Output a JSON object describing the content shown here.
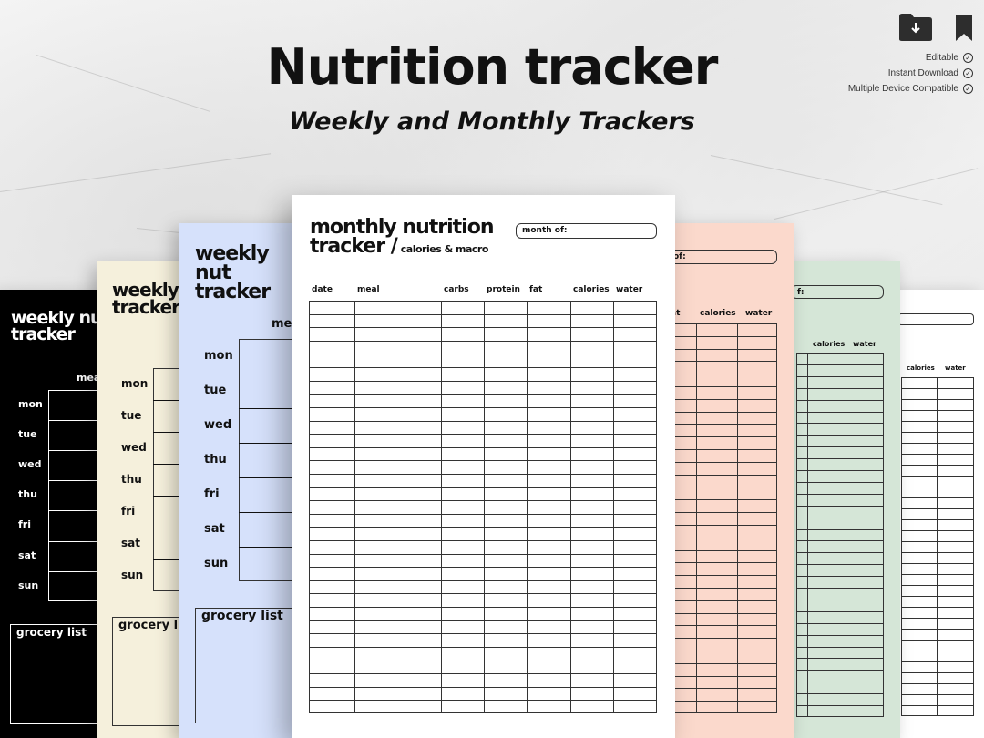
{
  "header": {
    "title": "Nutrition tracker",
    "subtitle": "Weekly and Monthly Trackers"
  },
  "features": [
    "Editable",
    "Instant Download",
    "Multiple Device Compatible"
  ],
  "icons": {
    "download": "folder-download-icon",
    "bookmark": "bookmark-icon",
    "check": "check-circle-icon"
  },
  "colors": {
    "black_sheet": "#000000",
    "cream_sheet": "#f5f0dc",
    "blue_sheet": "#d6e1fb",
    "white_sheet": "#ffffff",
    "peach_sheet": "#fbd9cc",
    "green_sheet": "#d5e6d7"
  },
  "weekly": {
    "title_line1": "weekly nut",
    "title_line1_cream": "weekly n",
    "title_line2": "tracker",
    "meal_label": "mea",
    "meal_label_blue": "me",
    "days": [
      "mon",
      "tue",
      "wed",
      "thu",
      "fri",
      "sat",
      "sun"
    ],
    "grocery": "grocery list",
    "grocery_cut": "grocery lis"
  },
  "monthly": {
    "title_line1": "monthly nutrition",
    "title_line2": "tracker /",
    "title_sub": "calories & macro",
    "month_of": "month of:",
    "month_of_cut": "of:",
    "month_of_short": "f:",
    "columns": [
      "date",
      "meal",
      "carbs",
      "protein",
      "fat",
      "calories",
      "water"
    ],
    "col_fat_cut": "at"
  }
}
